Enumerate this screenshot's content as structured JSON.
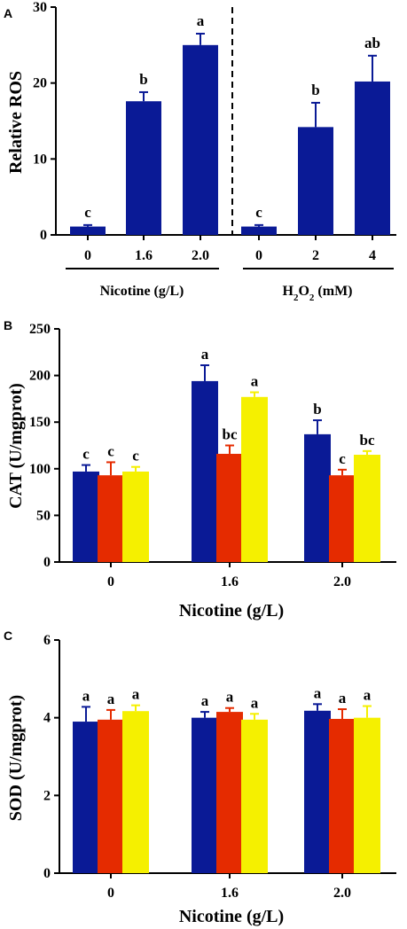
{
  "colors": {
    "navy": "#0a1a96",
    "red": "#e52b00",
    "yellow": "#f5f000"
  },
  "chart_data": [
    {
      "panel": "A",
      "type": "bar",
      "ylabel": "Relative ROS",
      "ylim": [
        0,
        30
      ],
      "yticks": [
        0,
        10,
        20,
        30
      ],
      "groups": [
        {
          "label": "Nicotine (g/L)",
          "categories": [
            "0",
            "1.6",
            "2.0"
          ],
          "values": [
            1.1,
            17.6,
            25.0
          ],
          "errors": [
            0.2,
            1.2,
            1.5
          ],
          "letters": [
            "c",
            "b",
            "a"
          ]
        },
        {
          "label": "H₂O₂ (mM)",
          "label_parts": [
            "H",
            "2",
            "O",
            "2",
            " (mM)"
          ],
          "categories": [
            "0",
            "2",
            "4"
          ],
          "values": [
            1.1,
            14.2,
            20.2
          ],
          "errors": [
            0.2,
            3.2,
            3.4
          ],
          "letters": [
            "c",
            "b",
            "ab"
          ]
        }
      ],
      "divider": "dashed"
    },
    {
      "panel": "B",
      "type": "bar",
      "ylabel": "CAT (U/mgprot)",
      "xlabel": "Nicotine (g/L)",
      "ylim": [
        0,
        250
      ],
      "yticks": [
        0,
        50,
        100,
        150,
        200,
        250
      ],
      "categories": [
        "0",
        "1.6",
        "2.0"
      ],
      "series": [
        {
          "color": "#0a1a96",
          "values": [
            97,
            194,
            137
          ],
          "errors": [
            7,
            17,
            15
          ],
          "letters": [
            "c",
            "a",
            "b"
          ]
        },
        {
          "color": "#e52b00",
          "values": [
            93,
            116,
            93
          ],
          "errors": [
            14,
            9,
            6
          ],
          "letters": [
            "c",
            "bc",
            "c"
          ]
        },
        {
          "color": "#f5f000",
          "values": [
            97,
            177,
            115
          ],
          "errors": [
            5,
            5,
            4
          ],
          "letters": [
            "c",
            "a",
            "bc"
          ]
        }
      ]
    },
    {
      "panel": "C",
      "type": "bar",
      "ylabel": "SOD (U/mgprot)",
      "xlabel": "Nicotine (g/L)",
      "ylim": [
        0,
        6
      ],
      "yticks": [
        0,
        2,
        4,
        6
      ],
      "categories": [
        "0",
        "1.6",
        "2.0"
      ],
      "series": [
        {
          "color": "#0a1a96",
          "values": [
            3.9,
            4.0,
            4.18
          ],
          "errors": [
            0.38,
            0.15,
            0.17
          ],
          "letters": [
            "a",
            "a",
            "a"
          ]
        },
        {
          "color": "#e52b00",
          "values": [
            3.95,
            4.15,
            3.97
          ],
          "errors": [
            0.25,
            0.1,
            0.25
          ],
          "letters": [
            "a",
            "a",
            "a"
          ]
        },
        {
          "color": "#f5f000",
          "values": [
            4.17,
            3.95,
            4.0
          ],
          "errors": [
            0.15,
            0.15,
            0.3
          ],
          "letters": [
            "a",
            "a",
            "a"
          ]
        }
      ]
    }
  ]
}
